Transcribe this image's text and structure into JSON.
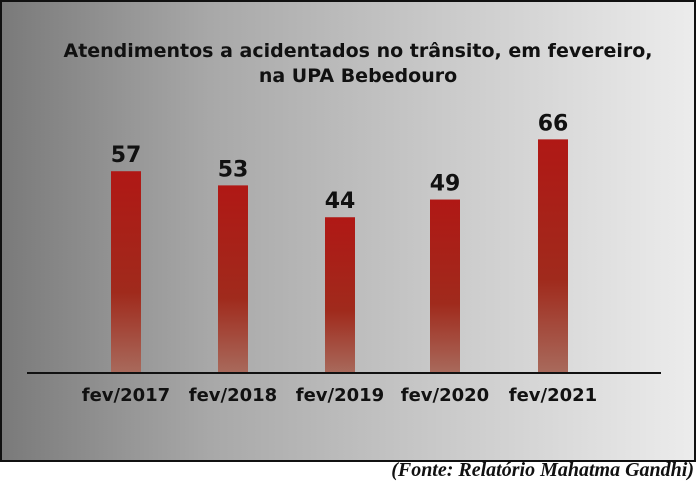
{
  "chart_data": {
    "type": "bar",
    "title": "Atendimentos a acidentados no trânsito, em fevereiro, na UPA Bebedouro",
    "title_lines": [
      "Atendimentos a acidentados no trânsito, em fevereiro,",
      "na UPA Bebedouro"
    ],
    "categories": [
      "fev/2017",
      "fev/2018",
      "fev/2019",
      "fev/2020",
      "fev/2021"
    ],
    "values": [
      57,
      53,
      44,
      49,
      66
    ],
    "ylim": [
      0,
      66
    ],
    "grid": false,
    "bar_color_top": "#b01815",
    "bar_color_bottom": "#9a5040",
    "source": "(Fonte: Relatório Mahatma Gandhi)"
  }
}
